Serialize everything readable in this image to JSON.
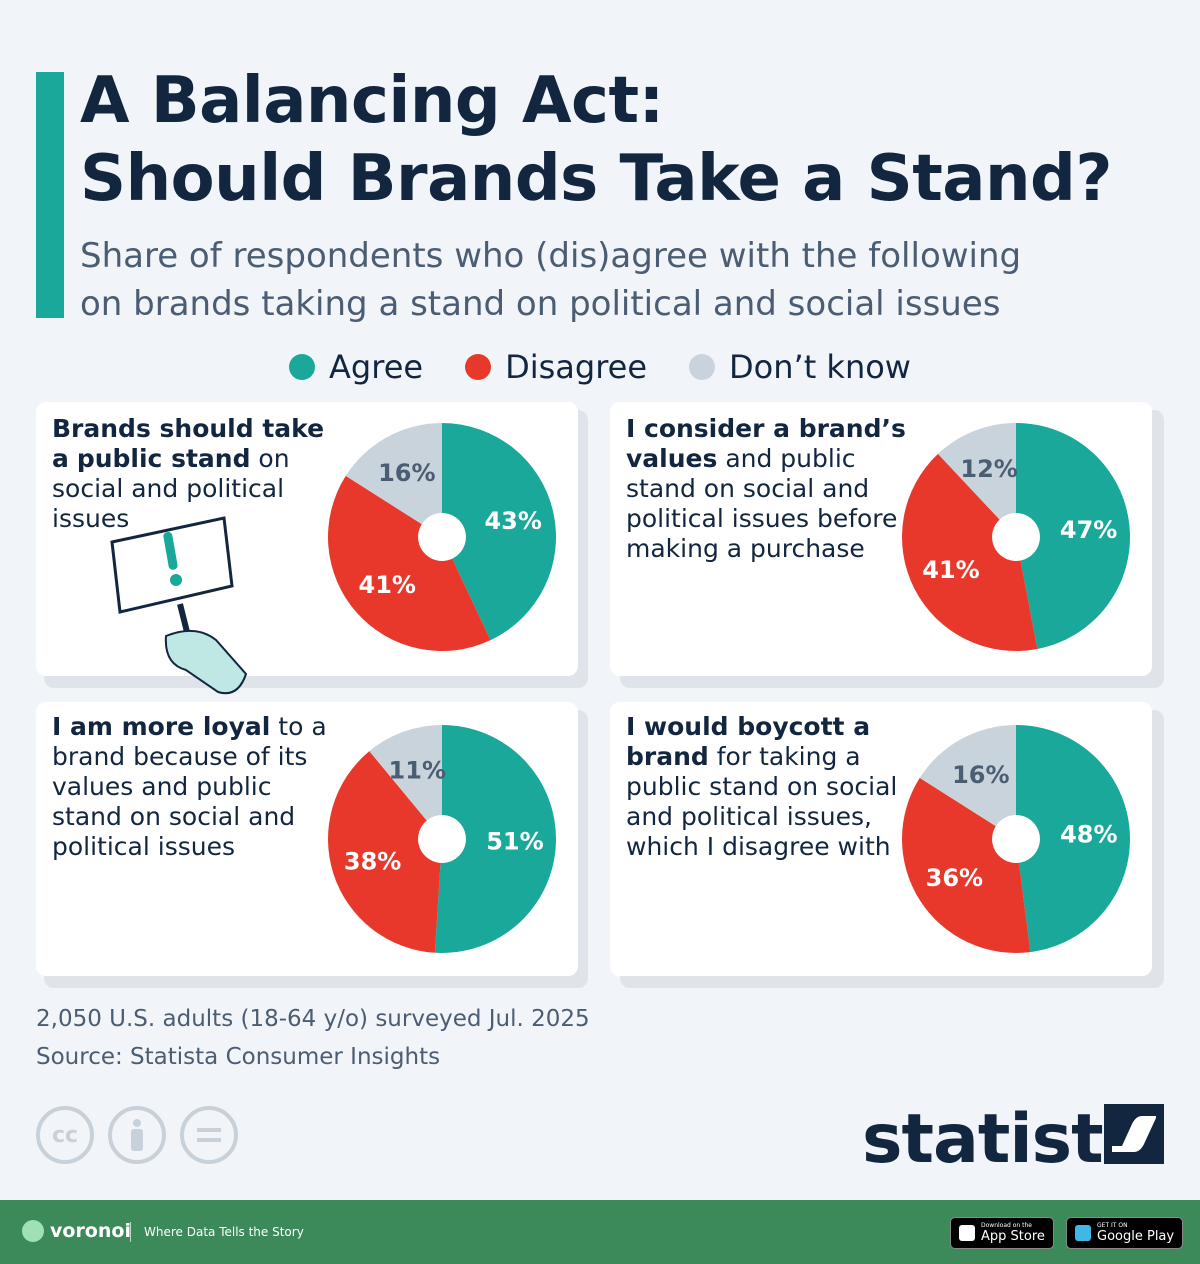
{
  "header": {
    "title_line1": "A Balancing Act:",
    "title_line2": "Should Brands Take a Stand?",
    "subtitle_line1": "Share of respondents who (dis)agree with the following",
    "subtitle_line2": "on brands taking a stand on political and social issues"
  },
  "legend": [
    {
      "label": "Agree",
      "color": "#1aa89a"
    },
    {
      "label": "Disagree",
      "color": "#e8382b"
    },
    {
      "label": "Don’t know",
      "color": "#c9d3dc"
    }
  ],
  "chart_data": [
    {
      "type": "pie",
      "statement_bold1": "Brands should take a",
      "statement_bold2": "public stand",
      "statement_rest": " on social and political issues",
      "slices": [
        {
          "label": "Agree",
          "value": 43
        },
        {
          "label": "Disagree",
          "value": 41
        },
        {
          "label": "Don’t know",
          "value": 16
        }
      ]
    },
    {
      "type": "pie",
      "statement_bold1": "I consider a brand’s",
      "statement_bold2": "values",
      "statement_rest": " and public stand on social and political issues before making a purchase",
      "slices": [
        {
          "label": "Agree",
          "value": 47
        },
        {
          "label": "Disagree",
          "value": 41
        },
        {
          "label": "Don’t know",
          "value": 12
        }
      ]
    },
    {
      "type": "pie",
      "statement_bold1": "I am more loyal",
      "statement_bold2": "",
      "statement_rest": " to a brand because of its values and public stand on social and political issues",
      "slices": [
        {
          "label": "Agree",
          "value": 51
        },
        {
          "label": "Disagree",
          "value": 38
        },
        {
          "label": "Don’t know",
          "value": 11
        }
      ]
    },
    {
      "type": "pie",
      "statement_bold1": "I would boycott a",
      "statement_bold2": "brand",
      "statement_rest": " for taking a public stand on social and political issues, which I disagree with",
      "slices": [
        {
          "label": "Agree",
          "value": 48
        },
        {
          "label": "Disagree",
          "value": 36
        },
        {
          "label": "Don’t know",
          "value": 16
        }
      ]
    }
  ],
  "footnote": {
    "survey": "2,050 U.S. adults (18-64 y/o) surveyed Jul. 2025",
    "source": "Source: Statista Consumer Insights"
  },
  "branding": {
    "logo_text": "statista",
    "cc_icons": [
      "cc-icon",
      "attribution-icon",
      "no-derivatives-icon"
    ],
    "voronoi": "voronoi",
    "tagline": "Where Data Tells the Story",
    "app_store_small": "Download on the",
    "app_store_big": "App Store",
    "google_play_small": "GET IT ON",
    "google_play_big": "Google Play"
  }
}
